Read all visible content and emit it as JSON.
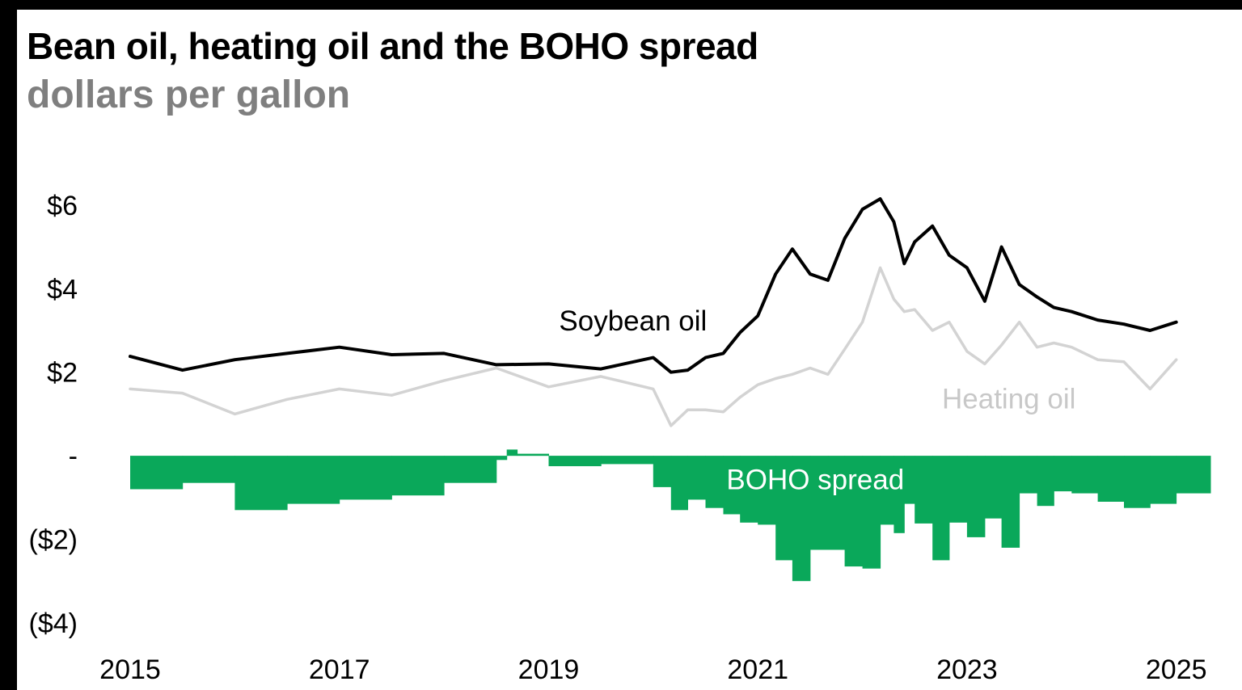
{
  "title": "Bean oil, heating oil and the BOHO spread",
  "subtitle": "dollars per gallon",
  "colors": {
    "soybean": "#000000",
    "heating": "#d3d3d3",
    "spread": "#0aa85a",
    "text_dark": "#000000",
    "text_muted": "#7f7f7f",
    "text_light_gray": "#c8c8c8",
    "spread_label": "#ffffff"
  },
  "chart_data": {
    "type": "line",
    "title": "Bean oil, heating oil and the BOHO spread",
    "subtitle": "dollars per gallon",
    "xlabel": "",
    "ylabel": "",
    "xlim": [
      2015,
      2025.25
    ],
    "ylim": [
      -4,
      6.5
    ],
    "grid": false,
    "legend": "inline labels",
    "x_ticks": [
      2015,
      2017,
      2019,
      2021,
      2023,
      2025
    ],
    "x_tick_labels": [
      "2015",
      "2017",
      "2019",
      "2021",
      "2023",
      "2025"
    ],
    "y_ticks": [
      6,
      4,
      2,
      0,
      -2,
      -4
    ],
    "y_tick_labels": [
      "$6",
      "$4",
      "$2",
      "-",
      "($2)",
      "($4)"
    ],
    "series": [
      {
        "name": "Soybean oil",
        "type": "line",
        "label_text": "Soybean oil",
        "x": [
          2015,
          2015.5,
          2016,
          2016.5,
          2017,
          2017.5,
          2018,
          2018.5,
          2019,
          2019.5,
          2020,
          2020.17,
          2020.33,
          2020.5,
          2020.67,
          2020.83,
          2021,
          2021.17,
          2021.33,
          2021.5,
          2021.67,
          2021.83,
          2022,
          2022.17,
          2022.3,
          2022.4,
          2022.5,
          2022.67,
          2022.83,
          2023,
          2023.17,
          2023.33,
          2023.5,
          2023.67,
          2023.83,
          2024,
          2024.25,
          2024.5,
          2024.75,
          2025
        ],
        "y": [
          2.38,
          2.05,
          2.3,
          2.45,
          2.6,
          2.42,
          2.45,
          2.18,
          2.2,
          2.08,
          2.35,
          2.0,
          2.05,
          2.35,
          2.45,
          2.95,
          3.35,
          4.35,
          4.95,
          4.35,
          4.2,
          5.2,
          5.9,
          6.15,
          5.6,
          4.6,
          5.12,
          5.5,
          4.8,
          4.5,
          3.7,
          5.0,
          4.1,
          3.8,
          3.55,
          3.45,
          3.25,
          3.15,
          3.0,
          3.2
        ]
      },
      {
        "name": "Heating oil",
        "type": "line",
        "label_text": "Heating oil",
        "x": [
          2015,
          2015.5,
          2016,
          2016.5,
          2017,
          2017.5,
          2018,
          2018.5,
          2019,
          2019.5,
          2020,
          2020.17,
          2020.33,
          2020.5,
          2020.67,
          2020.83,
          2021,
          2021.17,
          2021.33,
          2021.5,
          2021.67,
          2021.83,
          2022,
          2022.17,
          2022.3,
          2022.4,
          2022.5,
          2022.67,
          2022.83,
          2023,
          2023.17,
          2023.33,
          2023.5,
          2023.67,
          2023.83,
          2024,
          2024.25,
          2024.5,
          2024.75,
          2025
        ],
        "y": [
          1.6,
          1.5,
          1.0,
          1.35,
          1.6,
          1.45,
          1.8,
          2.1,
          1.65,
          1.9,
          1.6,
          0.72,
          1.1,
          1.1,
          1.05,
          1.4,
          1.7,
          1.85,
          1.95,
          2.1,
          1.95,
          2.55,
          3.2,
          4.5,
          3.75,
          3.45,
          3.5,
          3.0,
          3.2,
          2.5,
          2.2,
          2.65,
          3.2,
          2.6,
          2.7,
          2.6,
          2.3,
          2.25,
          1.6,
          2.3
        ]
      },
      {
        "name": "BOHO spread",
        "type": "bar",
        "label_text": "BOHO spread",
        "x": [
          2015,
          2015.5,
          2016,
          2016.5,
          2017,
          2017.5,
          2018,
          2018.5,
          2018.6,
          2018.7,
          2019,
          2019.5,
          2020,
          2020.17,
          2020.33,
          2020.5,
          2020.67,
          2020.83,
          2021,
          2021.17,
          2021.33,
          2021.5,
          2021.67,
          2021.83,
          2022,
          2022.17,
          2022.3,
          2022.4,
          2022.5,
          2022.67,
          2022.83,
          2023,
          2023.17,
          2023.33,
          2023.5,
          2023.67,
          2023.83,
          2024,
          2024.25,
          2024.5,
          2024.75,
          2025
        ],
        "y": [
          -0.8,
          -0.65,
          -1.3,
          -1.15,
          -1.05,
          -0.95,
          -0.65,
          -0.1,
          0.15,
          0.05,
          -0.25,
          -0.2,
          -0.75,
          -1.3,
          -1.05,
          -1.25,
          -1.4,
          -1.6,
          -1.65,
          -2.5,
          -3.0,
          -2.25,
          -2.25,
          -2.65,
          -2.7,
          -1.65,
          -1.85,
          -1.15,
          -1.62,
          -2.5,
          -1.6,
          -1.95,
          -1.5,
          -2.2,
          -0.9,
          -1.2,
          -0.85,
          -0.9,
          -1.1,
          -1.25,
          -1.15,
          -0.9
        ]
      }
    ]
  }
}
